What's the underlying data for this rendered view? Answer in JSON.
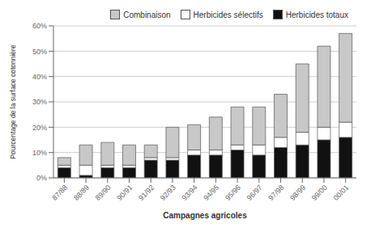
{
  "chart_data": {
    "type": "bar",
    "stacked": true,
    "categories": [
      "87/88",
      "88/89",
      "89/90",
      "90/91",
      "91/92",
      "92/93",
      "93/94",
      "94/95",
      "95/96",
      "96/97",
      "97/98",
      "98/99",
      "99/00",
      "00/01"
    ],
    "series": [
      {
        "name": "Herbicides totaux",
        "color": "#111111",
        "values": [
          4,
          1,
          4,
          4,
          7,
          7,
          9,
          9,
          11,
          9,
          12,
          13,
          15,
          16
        ]
      },
      {
        "name": "Herbicides sélectifs",
        "color": "#ffffff",
        "values": [
          1,
          4,
          1,
          1,
          1,
          1,
          2,
          2,
          2,
          4,
          4,
          5,
          5,
          6
        ]
      },
      {
        "name": "Combinaison",
        "color": "#c8c8c8",
        "values": [
          3,
          8,
          9,
          8,
          5,
          12,
          10,
          13,
          15,
          15,
          17,
          27,
          32,
          35
        ]
      }
    ],
    "xlabel": "Campagnes agricoles",
    "ylabel": "Pourcentage de la surface cotonnière",
    "ylim": [
      0,
      60
    ],
    "yticks": [
      {
        "value": 0,
        "label": "0%"
      },
      {
        "value": 10,
        "label": "10%"
      },
      {
        "value": 20,
        "label": "20%"
      },
      {
        "value": 30,
        "label": "30%"
      },
      {
        "value": 40,
        "label": "40%"
      },
      {
        "value": 50,
        "label": "50%"
      },
      {
        "value": 60,
        "label": "60%"
      }
    ],
    "grid": true,
    "legend": "upper right"
  }
}
